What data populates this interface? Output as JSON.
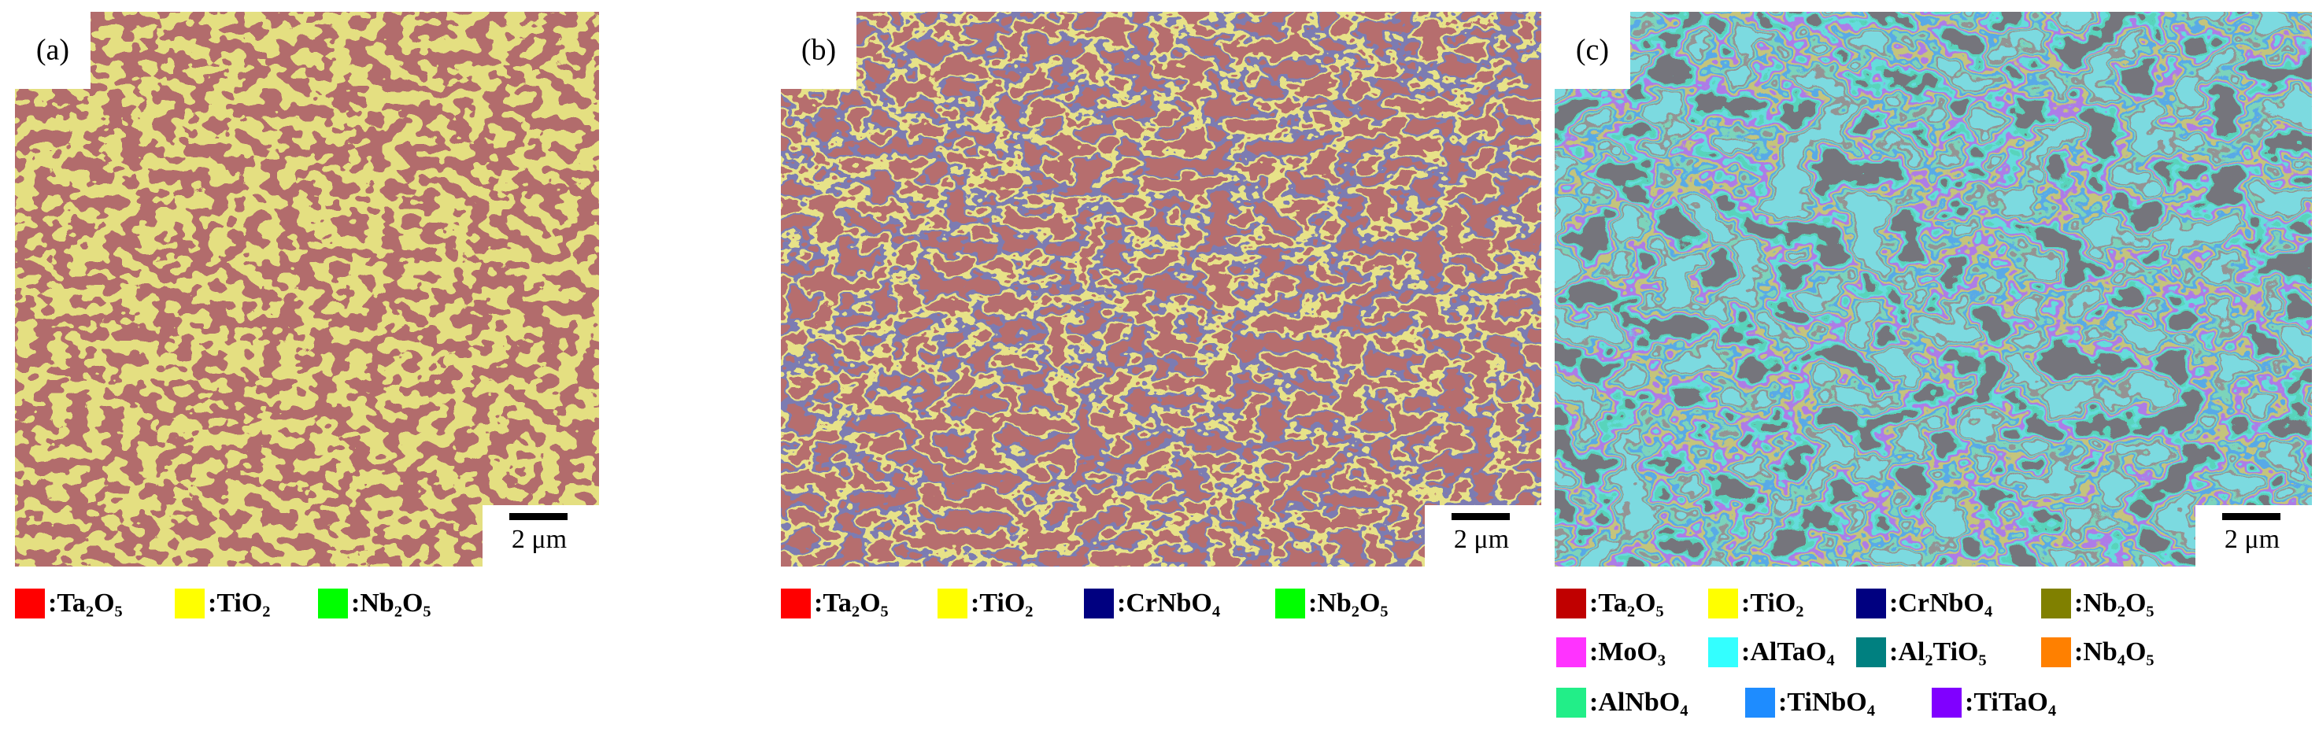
{
  "panels": [
    {
      "label": "(a)",
      "scale_bar": "2 μm",
      "legend": [
        {
          "name": ":Ta₂O₅",
          "color": "#ff0000"
        },
        {
          "name": ":TiO₂",
          "color": "#ffff00"
        },
        {
          "name": ":Nb₂O₅",
          "color": "#00ff00"
        }
      ]
    },
    {
      "label": "(b)",
      "scale_bar": "2 μm",
      "legend": [
        {
          "name": ":Ta₂O₅",
          "color": "#ff0000"
        },
        {
          "name": ":TiO₂",
          "color": "#ffff00"
        },
        {
          "name": ":CrNbO₄",
          "color": "#000080"
        },
        {
          "name": ":Nb₂O₅",
          "color": "#00ff00"
        }
      ]
    },
    {
      "label": "(c)",
      "scale_bar": "2 μm",
      "legend": [
        {
          "name": ":Ta₂O₅",
          "color": "#c00000"
        },
        {
          "name": ":TiO₂",
          "color": "#ffff00"
        },
        {
          "name": ":CrNbO₄",
          "color": "#000080"
        },
        {
          "name": ":Nb₂O₅",
          "color": "#808000"
        },
        {
          "name": ":MoO₃",
          "color": "#ff33ff"
        },
        {
          "name": ":AlTaO₄",
          "color": "#33ffff"
        },
        {
          "name": ":Al₂TiO₅",
          "color": "#008080"
        },
        {
          "name": ":Nb₄O₅",
          "color": "#ff8000"
        },
        {
          "name": ":AlNbO₄",
          "color": "#22ee88"
        },
        {
          "name": ":TiNbO₄",
          "color": "#1e8cff"
        },
        {
          "name": ":TiTaO₄",
          "color": "#8000ff"
        }
      ]
    }
  ]
}
